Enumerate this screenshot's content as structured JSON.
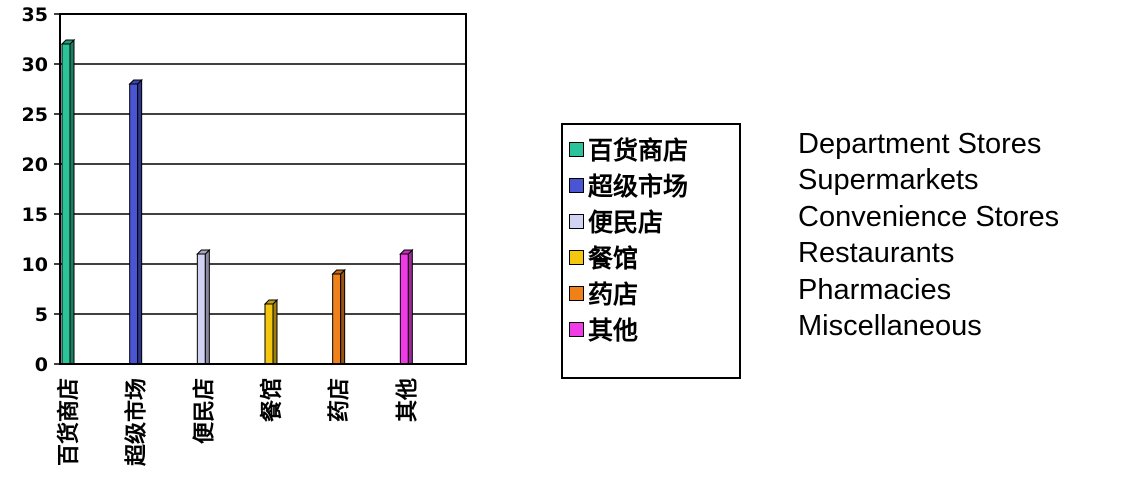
{
  "chart_data": {
    "type": "bar",
    "categories": [
      "百货商店",
      "超级市场",
      "便民店",
      "餐馆",
      "药店",
      "其他"
    ],
    "values": [
      32,
      28,
      11,
      6,
      9,
      11
    ],
    "colors": [
      "#2bc49a",
      "#4a55d4",
      "#d2d2f3",
      "#f4c60f",
      "#f0801a",
      "#f03ce6"
    ],
    "ylim": [
      0,
      35
    ],
    "yticks": [
      "0",
      "5",
      "10",
      "15",
      "20",
      "25",
      "30",
      "35"
    ],
    "grid": true,
    "legend": {
      "placement": "right",
      "entries": [
        "百货商店",
        "超级市场",
        "便民店",
        "餐馆",
        "药店",
        "其他"
      ]
    }
  },
  "translations": [
    "Department Stores",
    "Supermarkets",
    "Convenience Stores",
    "Restaurants",
    "Pharmacies",
    "Miscellaneous"
  ]
}
